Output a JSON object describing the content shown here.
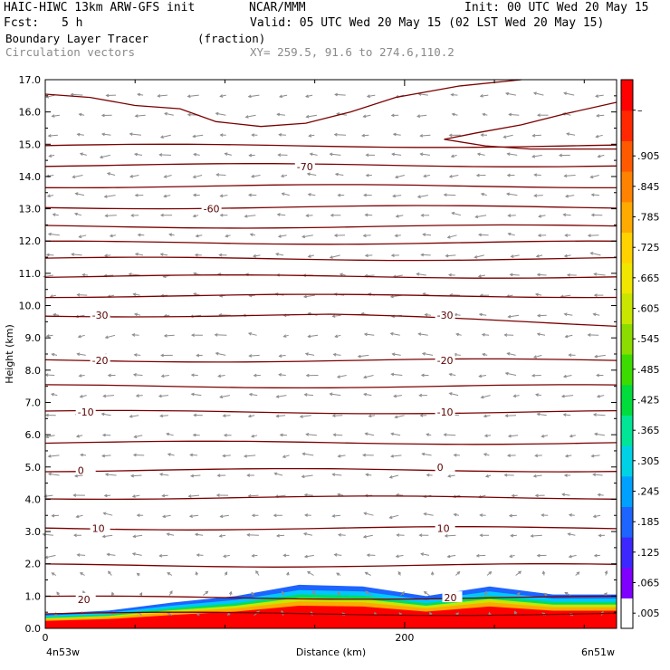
{
  "header": {
    "model": "HAIC-HIWC 13km ARW-GFS init",
    "org": "NCAR/MMM",
    "init": "Init: 00 UTC Wed 20 May 15",
    "fcst_label": "Fcst:",
    "fcst_value": "5 h",
    "valid": "Valid: 05 UTC Wed 20 May 15 (02 LST Wed 20 May 15)",
    "field1": "Boundary Layer Tracer",
    "field1_units": "(fraction)",
    "field2": "Circulation vectors",
    "xy": "XY= 259.5, 91.6 to 274.6,110.2"
  },
  "colors": {
    "contour": "#7a0000",
    "vector": "#8c8c8c",
    "colorbar": [
      "#ffffff",
      "#7f00ff",
      "#3c28ff",
      "#1e64ff",
      "#00a0ff",
      "#00d2e6",
      "#00e696",
      "#00dc3c",
      "#3cdc00",
      "#8cdc00",
      "#c8e600",
      "#f0e600",
      "#ffd200",
      "#ffaa00",
      "#ff8200",
      "#ff5a00",
      "#ff2800",
      "#ff0000"
    ]
  },
  "chart_data": {
    "type": "cross-section",
    "xlabel": "Distance (km)",
    "ylabel": "Height (km)",
    "x_left_label": "4n53w",
    "x_right_label": "6n51w",
    "x_ticks": [
      "0",
      "200"
    ],
    "x_tick_values": [
      0,
      200
    ],
    "xlim": [
      0,
      318
    ],
    "ylim": [
      0,
      17
    ],
    "y_ticks": [
      "0.0",
      "1.0",
      "2.0",
      "3.0",
      "4.0",
      "5.0",
      "6.0",
      "7.0",
      "8.0",
      "9.0",
      "10.0",
      "11.0",
      "12.0",
      "13.0",
      "14.0",
      "15.0",
      "16.0",
      "17.0"
    ],
    "colorbar_labels": [
      ".005",
      ".065",
      ".125",
      ".185",
      ".245",
      ".305",
      ".365",
      ".425",
      ".485",
      ".545",
      ".605",
      ".665",
      ".725",
      ".785",
      ".845",
      ".905",
      "–"
    ],
    "temperature_contours_C": [
      {
        "label": "-70",
        "x": 140,
        "z": 14.3,
        "values": [
          14.35,
          14.45,
          14.4,
          14.3,
          14.25,
          14.25,
          14.3
        ]
      },
      {
        "label": "-60",
        "x": 88,
        "z": 13.0,
        "values": [
          13.0,
          12.95,
          12.9,
          12.95,
          13.0,
          13.1,
          13.2
        ]
      },
      {
        "label": "-30",
        "x": 26,
        "z": 9.7,
        "values": [
          9.75,
          9.75,
          9.7,
          9.55,
          9.4,
          9.35,
          9.45
        ]
      },
      {
        "label": "-30",
        "x": 218,
        "z": 9.7,
        "values": [
          9.75,
          9.75,
          9.7,
          9.55,
          9.4,
          9.35,
          9.45
        ]
      },
      {
        "label": "-20",
        "x": 26,
        "z": 8.3,
        "values": [
          8.35,
          8.2,
          8.05,
          8.1,
          8.3,
          8.1,
          8.0
        ]
      },
      {
        "label": "-20",
        "x": 218,
        "z": 8.3,
        "values": [
          8.35,
          8.2,
          8.05,
          8.1,
          8.3,
          8.1,
          8.0
        ]
      },
      {
        "label": "-10",
        "x": 18,
        "z": 6.7,
        "values": [
          6.65,
          6.65,
          6.7,
          6.7,
          6.75,
          6.75,
          6.75
        ]
      },
      {
        "label": "-10",
        "x": 218,
        "z": 6.7,
        "values": [
          6.65,
          6.65,
          6.7,
          6.7,
          6.75,
          6.75,
          6.75
        ]
      },
      {
        "label": "0",
        "x": 18,
        "z": 4.9,
        "values": [
          4.8,
          4.88,
          4.92,
          4.95,
          5.0,
          5.02,
          5.0
        ]
      },
      {
        "label": "0",
        "x": 218,
        "z": 5.0,
        "values": [
          4.8,
          4.88,
          4.92,
          4.95,
          5.0,
          5.02,
          5.0
        ]
      },
      {
        "label": "10",
        "x": 26,
        "z": 3.1,
        "values": [
          3.05,
          3.08,
          3.1,
          3.1,
          3.12,
          3.12,
          3.12
        ]
      },
      {
        "label": "10",
        "x": 218,
        "z": 3.1,
        "values": [
          3.05,
          3.08,
          3.1,
          3.1,
          3.12,
          3.12,
          3.12
        ]
      },
      {
        "label": "20",
        "x": 18,
        "z": 0.9,
        "values": [
          0.85,
          0.9,
          0.95,
          1.0,
          1.02,
          1.0,
          1.0
        ]
      },
      {
        "label": "20",
        "x": 222,
        "z": 0.95,
        "values": [
          0.85,
          0.9,
          0.95,
          1.0,
          1.02,
          1.0,
          1.0
        ]
      }
    ],
    "boundary_layer_top_km": [
      0.45,
      0.55,
      0.8,
      1.0,
      1.35,
      1.3,
      1.0,
      1.3,
      1.05,
      1.05
    ]
  }
}
